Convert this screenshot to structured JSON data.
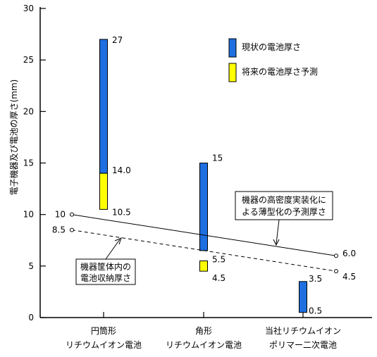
{
  "chart_data": {
    "type": "bar",
    "ylabel": "電子機器及び電池の厚さ(mm)",
    "ylim": [
      0,
      30
    ],
    "yticks": [
      0,
      5,
      10,
      15,
      20,
      25,
      30
    ],
    "grid": false,
    "legend_position": "top-right",
    "categories": [
      {
        "line1": "円筒形",
        "line2": "リチウムイオン電池"
      },
      {
        "line1": "角形",
        "line2": "リチウムイオン電池"
      },
      {
        "line1": "当社リチウムイオン",
        "line2": "ポリマー二次電池"
      }
    ],
    "series": [
      {
        "name": "現状の電池厚さ",
        "color": "#1e6fe0",
        "ranges": [
          [
            14.0,
            27
          ],
          [
            6.5,
            15
          ],
          [
            0.5,
            3.5
          ]
        ],
        "labels": [
          [
            "27",
            "14.0"
          ],
          [
            "15",
            ""
          ],
          [
            "3.5",
            "0.5"
          ]
        ]
      },
      {
        "name": "将来の電池厚さ予測",
        "color": "#ffff00",
        "ranges": [
          [
            10.5,
            14.0
          ],
          [
            4.5,
            5.5
          ],
          null
        ],
        "labels": [
          [
            "10.5"
          ],
          [
            "5.5",
            "4.5"
          ],
          []
        ]
      }
    ],
    "lines": [
      {
        "name": "機器の高密度実装化による薄型化の予測厚さ",
        "style": "solid",
        "start": {
          "x": 0,
          "y": 10,
          "label": "10"
        },
        "end": {
          "x": 2,
          "y": 6.0,
          "label": "6.0"
        },
        "annotation": [
          "機器の高密度実装化に",
          "よる薄型化の予測厚さ"
        ]
      },
      {
        "name": "機器筐体内の電池収納厚さ",
        "style": "dashed",
        "start": {
          "x": 0,
          "y": 8.5,
          "label": "8.5"
        },
        "end": {
          "x": 2,
          "y": 4.5,
          "label": "4.5"
        },
        "annotation": [
          "機器筐体内の",
          "電池収納厚さ"
        ]
      }
    ]
  }
}
